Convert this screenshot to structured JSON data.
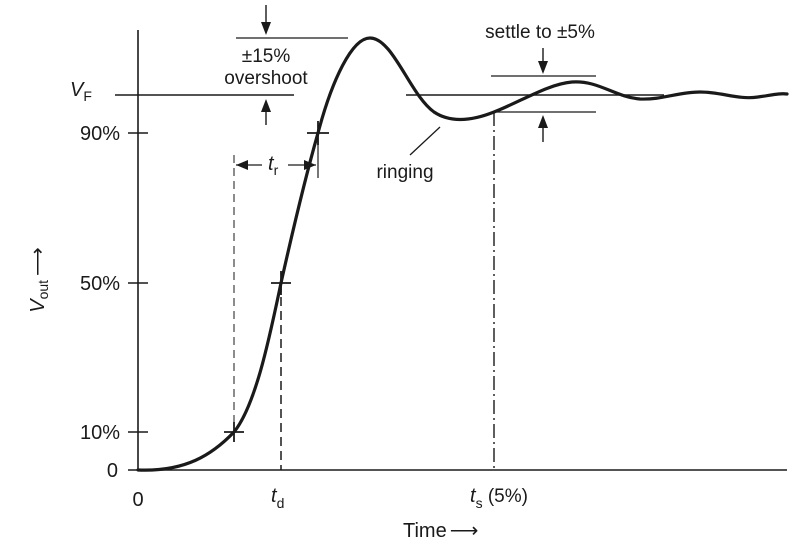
{
  "diagram": {
    "y_axis": {
      "label": "V",
      "label_sub": "out",
      "arrow": "⟶"
    },
    "x_axis": {
      "label": "Time",
      "arrow": "⟶",
      "origin": "0"
    },
    "levels": [
      {
        "label": "0"
      },
      {
        "label": "10%"
      },
      {
        "label": "50%"
      },
      {
        "label": "90%"
      }
    ],
    "vf": {
      "label": "V",
      "sub": "F"
    },
    "td": {
      "label": "t",
      "sub": "d"
    },
    "ts": {
      "label": "t",
      "sub": "s",
      "suffix": " (5%)"
    },
    "tr": {
      "label": "t",
      "sub": "r"
    },
    "overshoot": {
      "line1": "±15%",
      "line2": "overshoot"
    },
    "settle": {
      "label": "settle to ±5%"
    },
    "ringing": {
      "label": "ringing"
    },
    "colors": {
      "ink": "#1a1a1a",
      "background": "#ffffff"
    }
  }
}
